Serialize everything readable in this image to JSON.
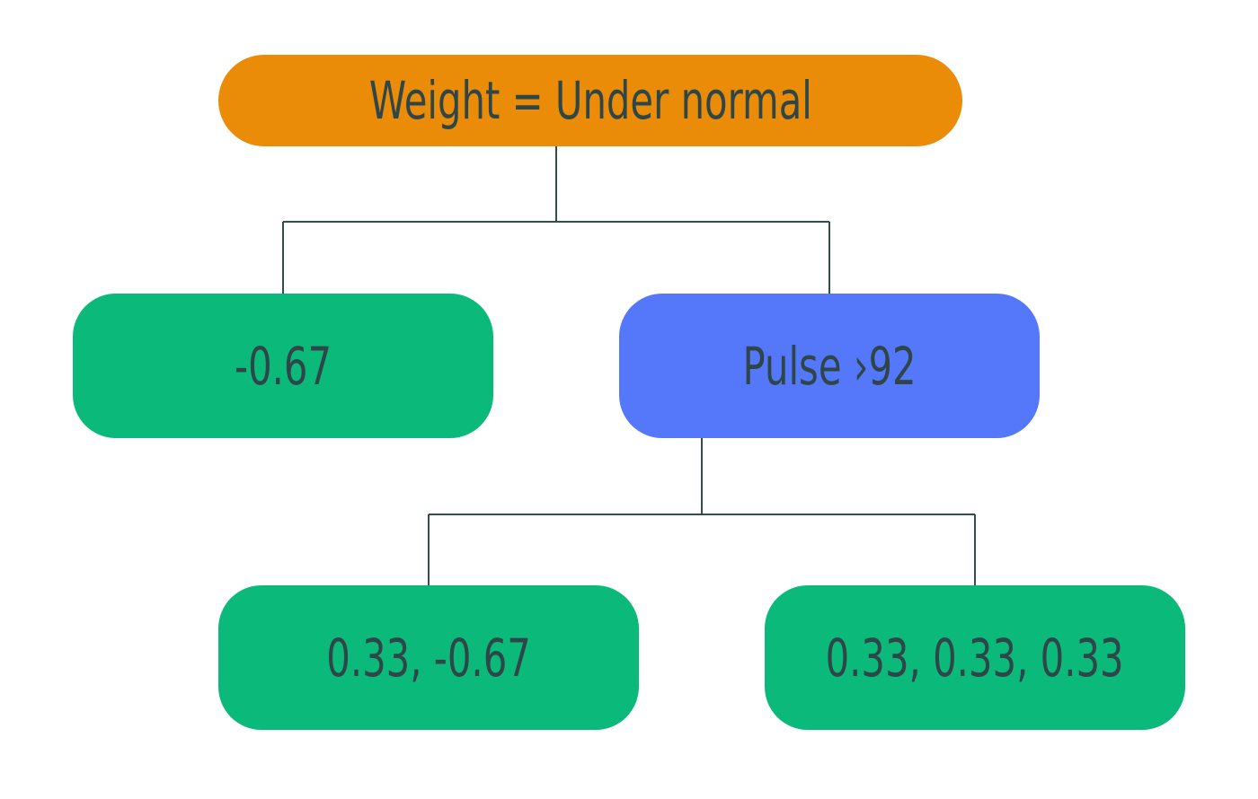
{
  "colors": {
    "decision_root": "#ea8c08",
    "decision_inner": "#5578fb",
    "leaf": "#0bb97a",
    "text": "#2f4648",
    "connector": "#2f4f4f"
  },
  "tree": {
    "root": {
      "label": "Weight = Under normal"
    },
    "left_leaf": {
      "label": "-0.67"
    },
    "pulse": {
      "label": "Pulse ›92"
    },
    "bottom_left_leaf": {
      "label": "0.33, -0.67"
    },
    "bottom_right_leaf": {
      "label": "0.33, 0.33, 0.33"
    }
  }
}
